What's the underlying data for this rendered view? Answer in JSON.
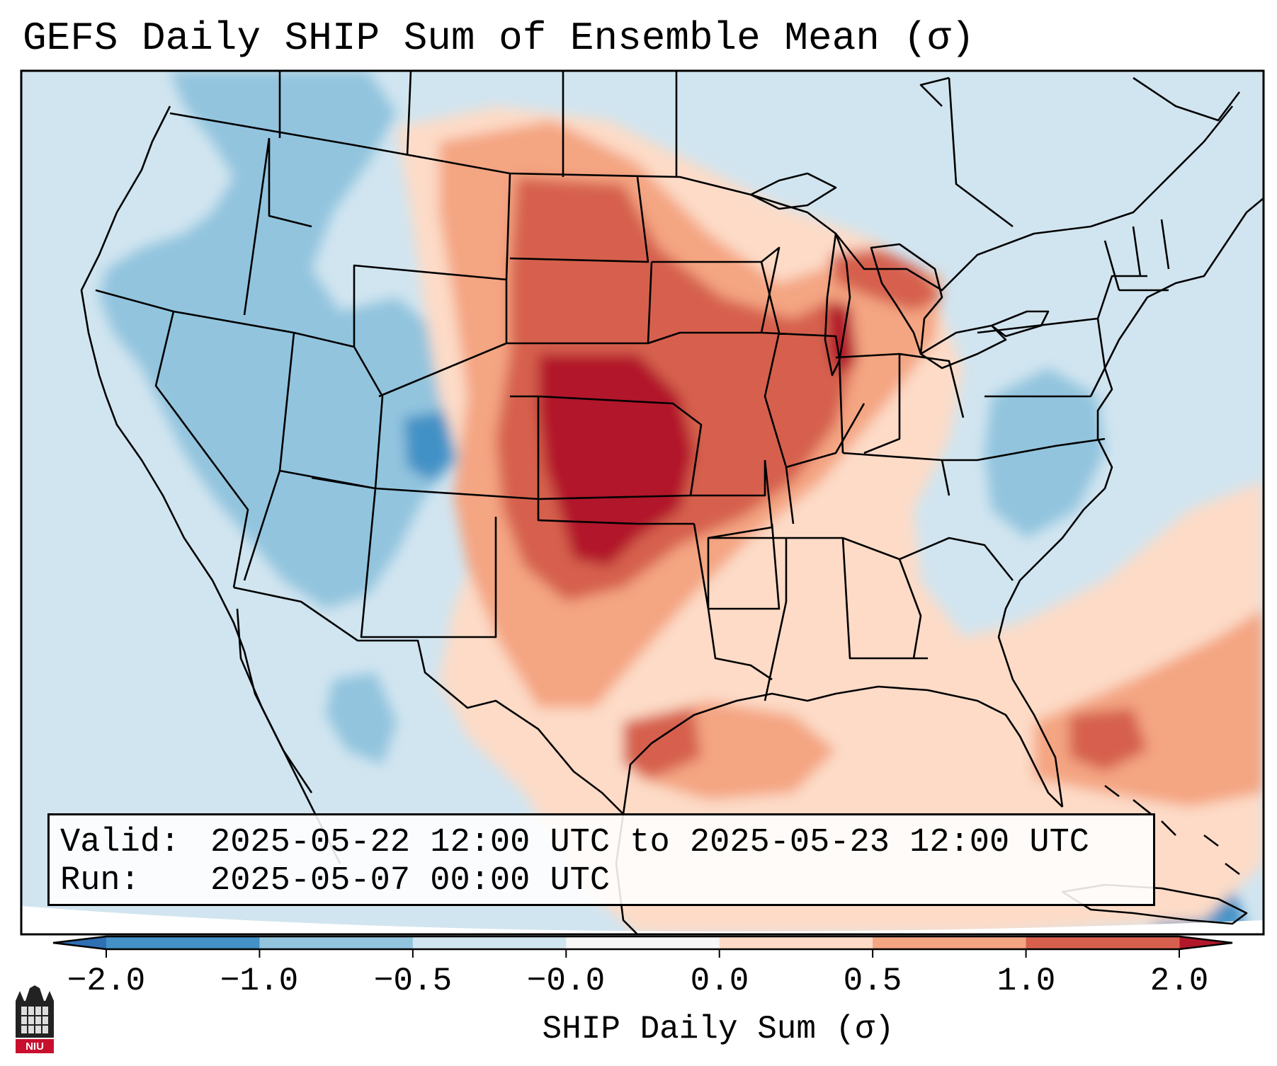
{
  "title": "GEFS Daily SHIP Sum of Ensemble Mean (σ)",
  "info_box": {
    "valid_label": "Valid:",
    "valid_value": "2025-05-22 12:00 UTC to 2025-05-23 12:00 UTC",
    "run_label": "Run:",
    "run_value": "2025-05-07 00:00 UTC"
  },
  "colorbar": {
    "label": "SHIP Daily Sum (σ)",
    "ticks": [
      "−2.0",
      "−1.0",
      "−0.5",
      "−0.0",
      "0.0",
      "0.5",
      "1.0",
      "2.0"
    ],
    "colors": {
      "below": "#2f6fb3",
      "bins": [
        "#4391c6",
        "#92c4de",
        "#d1e5f0",
        "#f7f7f7",
        "#fddbc7",
        "#f4a582",
        "#d6604d"
      ],
      "above": "#b2182b"
    }
  },
  "logo": {
    "icon": "niu-logo-icon",
    "text": "NIU"
  },
  "map": {
    "colors": {
      "background": "#d1e5f0",
      "slight_positive": "#fddbc7",
      "moderate_positive": "#f4a582",
      "strong_positive": "#d6604d",
      "extreme_positive": "#b2182b",
      "slight_negative": "#92c4de",
      "moderate_negative": "#4391c6",
      "borders": "#000000"
    }
  }
}
